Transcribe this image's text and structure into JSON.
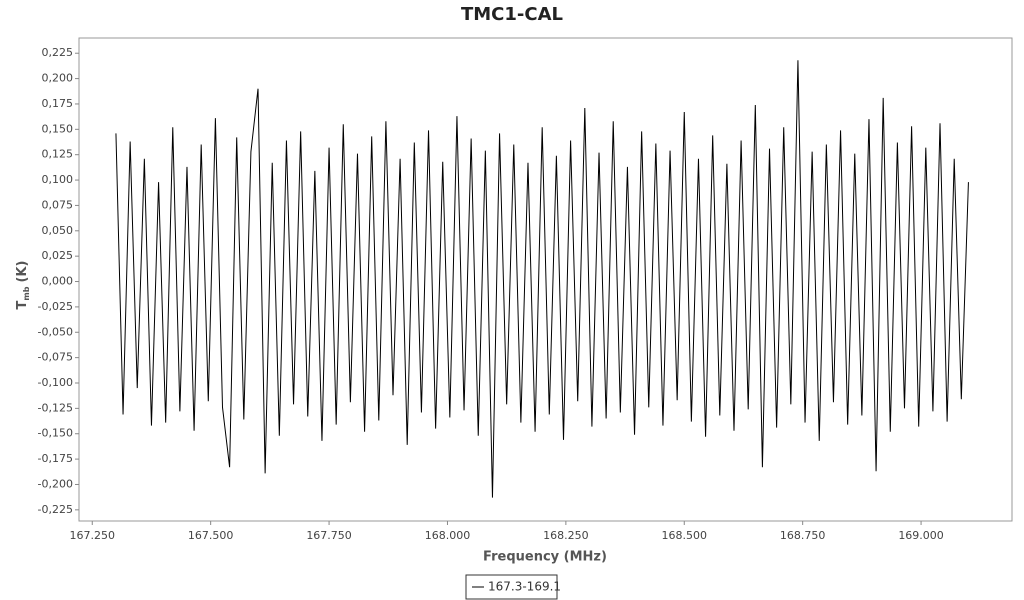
{
  "chart_data": {
    "type": "line",
    "title": "TMC1-CAL",
    "x_label": "Frequency (MHz)",
    "y_label": {
      "text": "T",
      "subscript": "mb",
      "unit": "(K)"
    },
    "x": [
      167.3,
      167.315,
      167.33,
      167.345,
      167.36,
      167.375,
      167.39,
      167.405,
      167.42,
      167.435,
      167.45,
      167.465,
      167.48,
      167.495,
      167.51,
      167.525,
      167.54,
      167.555,
      167.57,
      167.585,
      167.6,
      167.615,
      167.63,
      167.645,
      167.66,
      167.675,
      167.69,
      167.705,
      167.72,
      167.735,
      167.75,
      167.765,
      167.78,
      167.795,
      167.81,
      167.825,
      167.84,
      167.855,
      167.87,
      167.885,
      167.9,
      167.915,
      167.93,
      167.945,
      167.96,
      167.975,
      167.99,
      168.005,
      168.02,
      168.035,
      168.05,
      168.065,
      168.08,
      168.095,
      168.11,
      168.125,
      168.14,
      168.155,
      168.17,
      168.185,
      168.2,
      168.215,
      168.23,
      168.245,
      168.26,
      168.275,
      168.29,
      168.305,
      168.32,
      168.335,
      168.35,
      168.365,
      168.38,
      168.395,
      168.41,
      168.425,
      168.44,
      168.455,
      168.47,
      168.485,
      168.5,
      168.515,
      168.53,
      168.545,
      168.56,
      168.575,
      168.59,
      168.605,
      168.62,
      168.635,
      168.65,
      168.665,
      168.68,
      168.695,
      168.71,
      168.725,
      168.74,
      168.755,
      168.77,
      168.785,
      168.8,
      168.815,
      168.83,
      168.845,
      168.86,
      168.875,
      168.89,
      168.905,
      168.92,
      168.935,
      168.95,
      168.965,
      168.98,
      168.995,
      169.01,
      169.025,
      169.04,
      169.055,
      169.07,
      169.085,
      169.1
    ],
    "series": [
      {
        "name": "167.3-169.1",
        "color": "#000000",
        "values": [
          0.146,
          -0.131,
          0.138,
          -0.105,
          0.121,
          -0.142,
          0.098,
          -0.139,
          0.152,
          -0.128,
          0.113,
          -0.147,
          0.135,
          -0.118,
          0.161,
          -0.124,
          -0.183,
          0.142,
          -0.136,
          0.128,
          0.19,
          -0.189,
          0.117,
          -0.152,
          0.139,
          -0.121,
          0.148,
          -0.133,
          0.109,
          -0.157,
          0.132,
          -0.141,
          0.155,
          -0.119,
          0.126,
          -0.148,
          0.143,
          -0.137,
          0.158,
          -0.112,
          0.121,
          -0.161,
          0.137,
          -0.129,
          0.149,
          -0.145,
          0.118,
          -0.134,
          0.163,
          -0.127,
          0.141,
          -0.152,
          0.129,
          -0.213,
          0.146,
          -0.121,
          0.135,
          -0.139,
          0.117,
          -0.148,
          0.152,
          -0.131,
          0.124,
          -0.156,
          0.139,
          -0.118,
          0.171,
          -0.143,
          0.127,
          -0.135,
          0.158,
          -0.129,
          0.113,
          -0.151,
          0.148,
          -0.124,
          0.136,
          -0.142,
          0.129,
          -0.117,
          0.167,
          -0.138,
          0.121,
          -0.153,
          0.144,
          -0.132,
          0.116,
          -0.147,
          0.139,
          -0.126,
          0.174,
          -0.183,
          0.131,
          -0.144,
          0.152,
          -0.121,
          0.218,
          -0.139,
          0.128,
          -0.157,
          0.135,
          -0.119,
          0.149,
          -0.141,
          0.126,
          -0.132,
          0.16,
          -0.187,
          0.181,
          -0.148,
          0.137,
          -0.125,
          0.153,
          -0.143,
          0.132,
          -0.128,
          0.156,
          -0.138,
          0.121,
          -0.116,
          0.098
        ]
      }
    ],
    "xlim": [
      167.222,
      169.192
    ],
    "xticks": [
      {
        "value": 167.25,
        "label": "167.250"
      },
      {
        "value": 167.5,
        "label": "167.500"
      },
      {
        "value": 167.75,
        "label": "167.750"
      },
      {
        "value": 168,
        "label": "168.000"
      },
      {
        "value": 168.25,
        "label": "168.250"
      },
      {
        "value": 168.5,
        "label": "168.500"
      },
      {
        "value": 168.75,
        "label": "168.750"
      },
      {
        "value": 169,
        "label": "169.000"
      }
    ],
    "ylim": [
      -0.236,
      0.24
    ],
    "yticks": [
      {
        "value": -0.225,
        "label": "-0,225"
      },
      {
        "value": -0.2,
        "label": "-0,200"
      },
      {
        "value": -0.175,
        "label": "-0,175"
      },
      {
        "value": -0.15,
        "label": "-0,150"
      },
      {
        "value": -0.125,
        "label": "-0,125"
      },
      {
        "value": -0.1,
        "label": "-0,100"
      },
      {
        "value": -0.075,
        "label": "-0,075"
      },
      {
        "value": -0.05,
        "label": "-0,050"
      },
      {
        "value": -0.025,
        "label": "-0,025"
      },
      {
        "value": 0,
        "label": "0,000"
      },
      {
        "value": 0.025,
        "label": "0,025"
      },
      {
        "value": 0.05,
        "label": "0,050"
      },
      {
        "value": 0.075,
        "label": "0,075"
      },
      {
        "value": 0.1,
        "label": "0,100"
      },
      {
        "value": 0.125,
        "label": "0,125"
      },
      {
        "value": 0.15,
        "label": "0,150"
      },
      {
        "value": 0.175,
        "label": "0,175"
      },
      {
        "value": 0.2,
        "label": "0,200"
      },
      {
        "value": 0.225,
        "label": "0,225"
      }
    ],
    "grid": false
  }
}
